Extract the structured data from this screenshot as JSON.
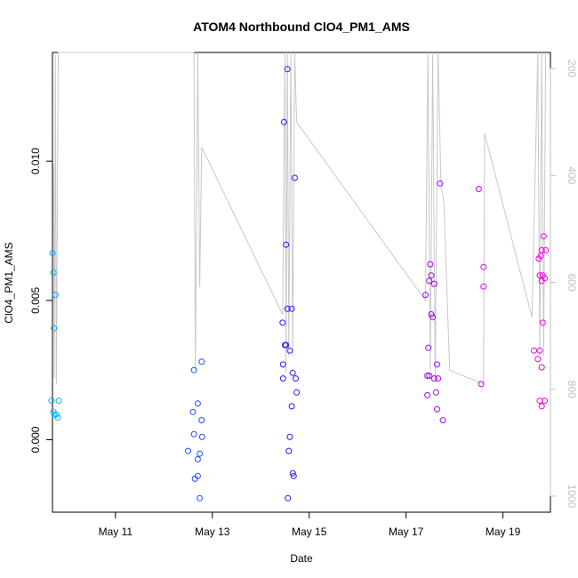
{
  "chart_data": {
    "type": "scatter",
    "title": "ATOM4 Northbound ClO4_PM1_AMS",
    "xlabel": "Date",
    "ylabel": "ClO4_PM1_AMS",
    "x_ticks": [
      "May 11",
      "May 13",
      "May 15",
      "May 17",
      "May 19"
    ],
    "x_tick_days": [
      11,
      13,
      15,
      17,
      19
    ],
    "xlim_days": [
      9.7,
      19.98
    ],
    "ylim": [
      -0.0026,
      0.0139
    ],
    "y_ticks": [
      0.0,
      0.005,
      0.01
    ],
    "y_tick_labels": [
      "0.000",
      "0.005",
      "0.010"
    ],
    "right_axis": {
      "label": "",
      "ticks": [
        200,
        400,
        600,
        800,
        1000
      ],
      "lim": [
        1030,
        170
      ]
    },
    "legend": "none",
    "grid": false,
    "altitude_profile": [
      [
        9.72,
        0.0099
      ],
      [
        9.74,
        0.0022
      ],
      [
        9.76,
        0.0138
      ],
      [
        9.78,
        0.002
      ],
      [
        9.82,
        0.0139
      ],
      [
        12.62,
        0.0139
      ],
      [
        12.65,
        0.0025
      ],
      [
        12.7,
        0.0139
      ],
      [
        12.74,
        0.0055
      ],
      [
        12.78,
        0.0105
      ],
      [
        14.45,
        0.0045
      ],
      [
        14.5,
        0.0139
      ],
      [
        14.52,
        0.0024
      ],
      [
        14.55,
        0.0139
      ],
      [
        14.58,
        0.003
      ],
      [
        14.62,
        0.0139
      ],
      [
        14.66,
        0.003
      ],
      [
        14.7,
        0.0139
      ],
      [
        14.74,
        0.0114
      ],
      [
        17.4,
        0.005
      ],
      [
        17.45,
        0.0139
      ],
      [
        17.5,
        0.0025
      ],
      [
        17.55,
        0.0139
      ],
      [
        17.6,
        0.0022
      ],
      [
        17.66,
        0.0139
      ],
      [
        17.72,
        0.0092
      ],
      [
        17.78,
        0.0085
      ],
      [
        17.9,
        0.0025
      ],
      [
        18.6,
        0.002
      ],
      [
        18.62,
        0.011
      ],
      [
        19.6,
        0.0044
      ],
      [
        19.72,
        0.0139
      ],
      [
        19.76,
        0.003
      ],
      [
        19.8,
        0.0139
      ],
      [
        19.84,
        0.003
      ],
      [
        19.88,
        0.0139
      ]
    ],
    "points": [
      [
        9.7,
        0.0067
      ],
      [
        9.72,
        0.006
      ],
      [
        9.76,
        0.0052
      ],
      [
        9.73,
        0.004
      ],
      [
        9.68,
        0.0014
      ],
      [
        9.83,
        0.0014
      ],
      [
        9.72,
        0.001
      ],
      [
        9.74,
        0.0009
      ],
      [
        9.78,
        0.0009
      ],
      [
        9.81,
        0.0008
      ],
      [
        12.62,
        0.0025
      ],
      [
        12.78,
        0.0028
      ],
      [
        12.7,
        0.0013
      ],
      [
        12.6,
        0.001
      ],
      [
        12.78,
        0.0007
      ],
      [
        12.62,
        0.0002
      ],
      [
        12.79,
        0.0001
      ],
      [
        12.5,
        -0.0004
      ],
      [
        12.74,
        -0.0005
      ],
      [
        12.7,
        -0.0007
      ],
      [
        12.7,
        -0.0013
      ],
      [
        12.64,
        -0.0014
      ],
      [
        12.74,
        -0.0021
      ],
      [
        14.55,
        0.0133
      ],
      [
        14.48,
        0.0114
      ],
      [
        14.7,
        0.0094
      ],
      [
        14.52,
        0.007
      ],
      [
        14.55,
        0.0047
      ],
      [
        14.64,
        0.0047
      ],
      [
        14.45,
        0.0042
      ],
      [
        14.5,
        0.0034
      ],
      [
        14.52,
        0.0034
      ],
      [
        14.6,
        0.0032
      ],
      [
        14.46,
        0.0027
      ],
      [
        14.66,
        0.0024
      ],
      [
        14.46,
        0.0022
      ],
      [
        14.72,
        0.0022
      ],
      [
        14.74,
        0.0017
      ],
      [
        14.64,
        0.0012
      ],
      [
        14.6,
        0.0001
      ],
      [
        14.58,
        -0.0004
      ],
      [
        14.66,
        -0.0012
      ],
      [
        14.68,
        -0.0013
      ],
      [
        14.56,
        -0.0021
      ],
      [
        17.4,
        0.0052
      ],
      [
        17.5,
        0.0063
      ],
      [
        17.48,
        0.0057
      ],
      [
        17.52,
        0.0059
      ],
      [
        17.58,
        0.0056
      ],
      [
        17.52,
        0.0045
      ],
      [
        17.55,
        0.0044
      ],
      [
        17.46,
        0.0033
      ],
      [
        17.64,
        0.0027
      ],
      [
        17.44,
        0.0023
      ],
      [
        17.48,
        0.0023
      ],
      [
        17.58,
        0.0022
      ],
      [
        17.66,
        0.0022
      ],
      [
        17.44,
        0.0016
      ],
      [
        17.62,
        0.0017
      ],
      [
        17.64,
        0.0011
      ],
      [
        17.76,
        0.0007
      ],
      [
        17.7,
        0.0092
      ],
      [
        18.5,
        0.009
      ],
      [
        18.6,
        0.0062
      ],
      [
        18.6,
        0.0055
      ],
      [
        18.55,
        0.002
      ],
      [
        19.64,
        0.0032
      ],
      [
        19.72,
        0.0029
      ],
      [
        19.76,
        0.0032
      ],
      [
        19.74,
        0.0065
      ],
      [
        19.78,
        0.0066
      ],
      [
        19.8,
        0.0068
      ],
      [
        19.88,
        0.0068
      ],
      [
        19.84,
        0.0073
      ],
      [
        19.76,
        0.0059
      ],
      [
        19.82,
        0.0059
      ],
      [
        19.86,
        0.0058
      ],
      [
        19.8,
        0.0057
      ],
      [
        19.82,
        0.0042
      ],
      [
        19.8,
        0.0026
      ],
      [
        19.76,
        0.0014
      ],
      [
        19.86,
        0.0014
      ],
      [
        19.8,
        0.0012
      ]
    ]
  }
}
